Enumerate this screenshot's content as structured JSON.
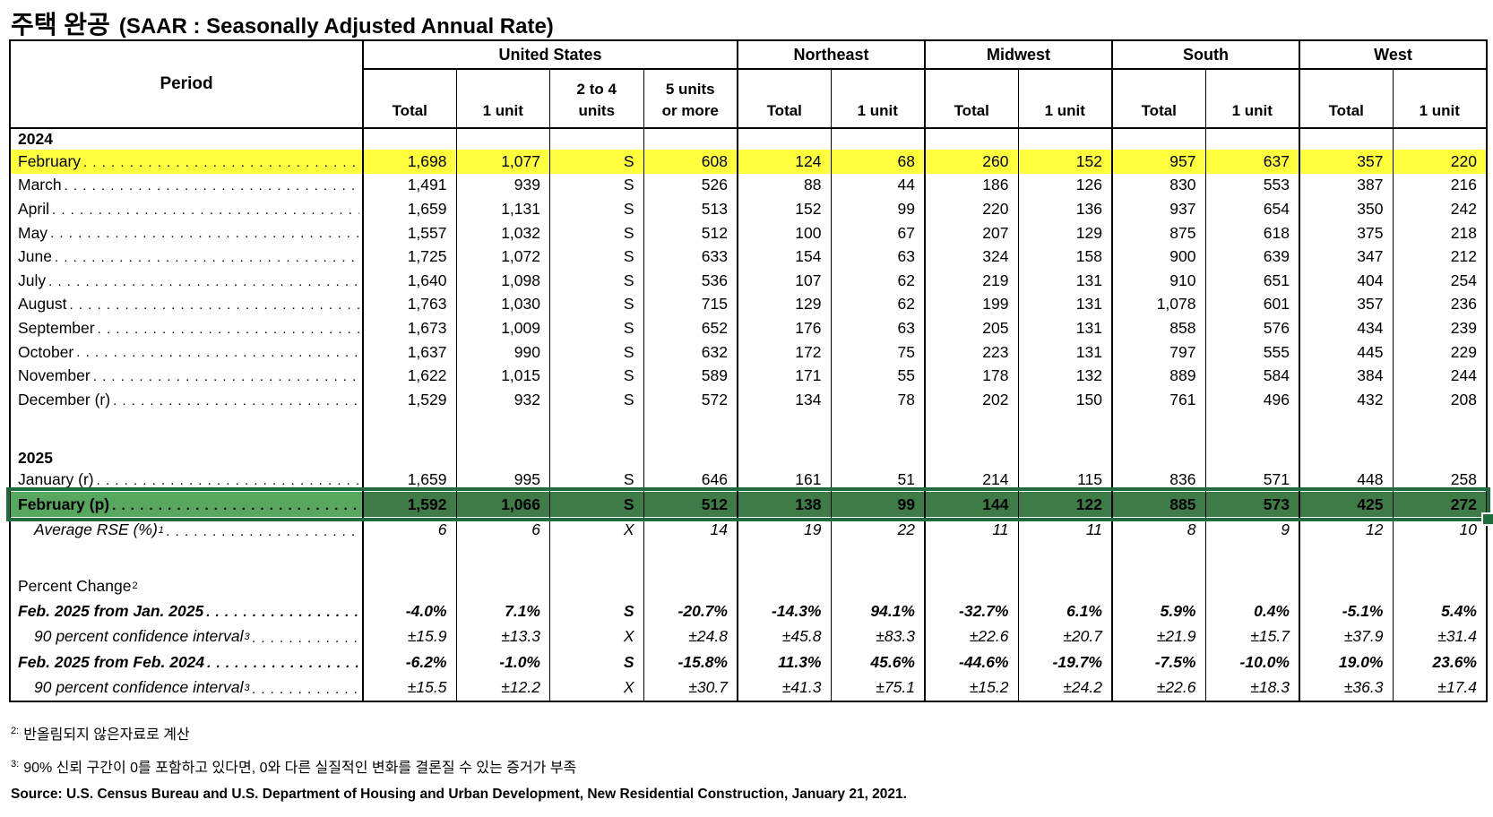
{
  "title": {
    "korean": "주택 완공",
    "english": "(SAAR : Seasonally Adjusted Annual Rate)"
  },
  "table": {
    "period_header": "Period",
    "groups": [
      {
        "label": "United States",
        "columns": [
          "Total",
          "1 unit",
          "2 to 4\nunits",
          "5 units\nor more"
        ]
      },
      {
        "label": "Northeast",
        "columns": [
          "Total",
          "1 unit"
        ]
      },
      {
        "label": "Midwest",
        "columns": [
          "Total",
          "1 unit"
        ]
      },
      {
        "label": "South",
        "columns": [
          "Total",
          "1 unit"
        ]
      },
      {
        "label": "West",
        "columns": [
          "Total",
          "1 unit"
        ]
      }
    ],
    "rows": [
      {
        "type": "year",
        "label": "2024"
      },
      {
        "type": "data",
        "label": "February",
        "highlight": "yellow",
        "values": [
          "1,698",
          "1,077",
          "S",
          "608",
          "124",
          "68",
          "260",
          "152",
          "957",
          "637",
          "357",
          "220"
        ]
      },
      {
        "type": "data",
        "label": "March",
        "values": [
          "1,491",
          "939",
          "S",
          "526",
          "88",
          "44",
          "186",
          "126",
          "830",
          "553",
          "387",
          "216"
        ]
      },
      {
        "type": "data",
        "label": "April",
        "values": [
          "1,659",
          "1,131",
          "S",
          "513",
          "152",
          "99",
          "220",
          "136",
          "937",
          "654",
          "350",
          "242"
        ]
      },
      {
        "type": "data",
        "label": "May",
        "values": [
          "1,557",
          "1,032",
          "S",
          "512",
          "100",
          "67",
          "207",
          "129",
          "875",
          "618",
          "375",
          "218"
        ]
      },
      {
        "type": "data",
        "label": "June",
        "values": [
          "1,725",
          "1,072",
          "S",
          "633",
          "154",
          "63",
          "324",
          "158",
          "900",
          "639",
          "347",
          "212"
        ]
      },
      {
        "type": "data",
        "label": "July",
        "values": [
          "1,640",
          "1,098",
          "S",
          "536",
          "107",
          "62",
          "219",
          "131",
          "910",
          "651",
          "404",
          "254"
        ]
      },
      {
        "type": "data",
        "label": "August",
        "values": [
          "1,763",
          "1,030",
          "S",
          "715",
          "129",
          "62",
          "199",
          "131",
          "1,078",
          "601",
          "357",
          "236"
        ]
      },
      {
        "type": "data",
        "label": "September",
        "values": [
          "1,673",
          "1,009",
          "S",
          "652",
          "176",
          "63",
          "205",
          "131",
          "858",
          "576",
          "434",
          "239"
        ]
      },
      {
        "type": "data",
        "label": "October",
        "values": [
          "1,637",
          "990",
          "S",
          "632",
          "172",
          "75",
          "223",
          "131",
          "797",
          "555",
          "445",
          "229"
        ]
      },
      {
        "type": "data",
        "label": "November",
        "values": [
          "1,622",
          "1,015",
          "S",
          "589",
          "171",
          "55",
          "178",
          "132",
          "889",
          "584",
          "384",
          "244"
        ]
      },
      {
        "type": "data",
        "label": "December (r)",
        "values": [
          "1,529",
          "932",
          "S",
          "572",
          "134",
          "78",
          "202",
          "150",
          "761",
          "496",
          "432",
          "208"
        ]
      },
      {
        "type": "spacer"
      },
      {
        "type": "year",
        "label": "2025"
      },
      {
        "type": "data",
        "label": "January (r)",
        "values": [
          "1,659",
          "995",
          "S",
          "646",
          "161",
          "51",
          "214",
          "115",
          "836",
          "571",
          "448",
          "258"
        ]
      },
      {
        "type": "data",
        "label": "February (p)",
        "highlight": "green",
        "values": [
          "1,592",
          "1,066",
          "S",
          "512",
          "138",
          "99",
          "144",
          "122",
          "885",
          "573",
          "425",
          "272"
        ]
      },
      {
        "type": "data",
        "label": "Average RSE (%)",
        "sup": "1",
        "style": "italic",
        "indent": true,
        "values": [
          "6",
          "6",
          "X",
          "14",
          "19",
          "22",
          "11",
          "11",
          "8",
          "9",
          "12",
          "10"
        ]
      },
      {
        "type": "spacer",
        "tall": true
      },
      {
        "type": "label",
        "label": "Percent Change",
        "sup": "2"
      },
      {
        "type": "data",
        "label": "Feb. 2025 from Jan. 2025",
        "style": "bold-italic",
        "values": [
          "-4.0%",
          "7.1%",
          "S",
          "-20.7%",
          "-14.3%",
          "94.1%",
          "-32.7%",
          "6.1%",
          "5.9%",
          "0.4%",
          "-5.1%",
          "5.4%"
        ]
      },
      {
        "type": "data",
        "label": "90 percent confidence interval",
        "sup": "3",
        "style": "italic",
        "indent": true,
        "values": [
          "±15.9",
          "±13.3",
          "X",
          "±24.8",
          "±45.8",
          "±83.3",
          "±22.6",
          "±20.7",
          "±21.9",
          "±15.7",
          "±37.9",
          "±31.4"
        ]
      },
      {
        "type": "data",
        "label": "Feb. 2025 from Feb. 2024",
        "style": "bold-italic",
        "values": [
          "-6.2%",
          "-1.0%",
          "S",
          "-15.8%",
          "11.3%",
          "45.6%",
          "-44.6%",
          "-19.7%",
          "-7.5%",
          "-10.0%",
          "19.0%",
          "23.6%"
        ]
      },
      {
        "type": "data",
        "label": "90 percent confidence interval",
        "sup": "3",
        "style": "italic",
        "indent": true,
        "values": [
          "±15.5",
          "±12.2",
          "X",
          "±30.7",
          "±41.3",
          "±75.1",
          "±15.2",
          "±24.2",
          "±22.6",
          "±18.3",
          "±36.3",
          "±17.4"
        ]
      }
    ]
  },
  "footnotes": [
    {
      "sup": "2:",
      "text": "반올림되지 않은자료로 계산"
    },
    {
      "sup": "3:",
      "text": "90% 신뢰 구간이 0를 포함하고 있다면, 0와 다른 실질적인 변화를 결론질 수 있는 증거가 부족"
    }
  ],
  "source": "Source: U.S. Census Bureau and U.S. Department of Housing and Urban Development, New Residential Construction, January 21, 2021.",
  "colors": {
    "highlight_yellow": "#FFFF3D",
    "selection_data_fill": "#3E7B46",
    "selection_label_fill": "#57A75F",
    "selection_border": "#1F6B3C"
  }
}
